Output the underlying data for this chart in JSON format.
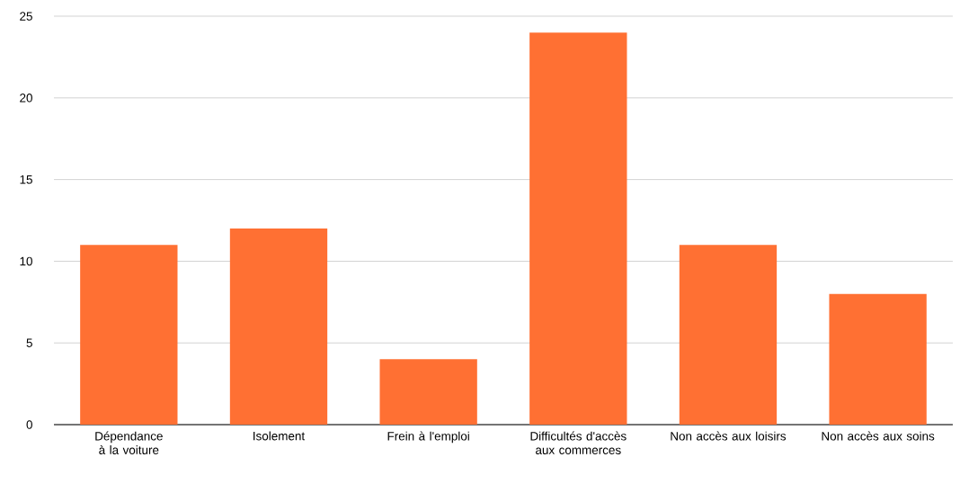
{
  "chart_data": {
    "type": "bar",
    "categories": [
      "Dépendance à la voiture",
      "Isolement",
      "Frein à l'emploi",
      "Difficultés d'accès aux commerces",
      "Non accès aux loisirs",
      "Non accès aux soins"
    ],
    "values": [
      11,
      12,
      4,
      24,
      11,
      8
    ],
    "color": "#ff7033",
    "ylim": [
      0,
      25
    ],
    "yticks": [
      0,
      5,
      10,
      15,
      20,
      25
    ],
    "grid": "y"
  }
}
